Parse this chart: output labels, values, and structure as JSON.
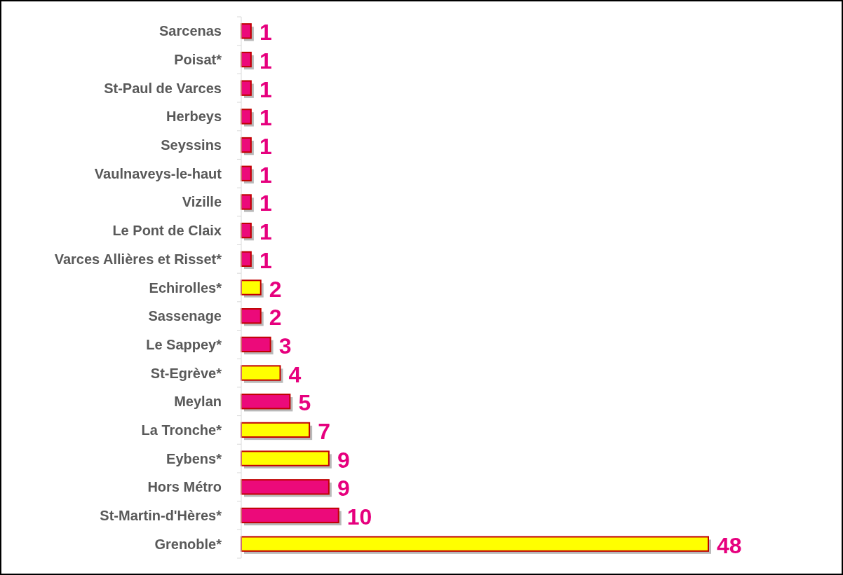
{
  "chart_data": {
    "type": "bar",
    "orientation": "horizontal",
    "categories": [
      "Sarcenas",
      "Poisat*",
      "St-Paul de Varces",
      "Herbeys",
      "Seyssins",
      "Vaulnaveys-le-haut",
      "Vizille",
      "Le Pont de Claix",
      "Varces Allières et Risset*",
      "Echirolles*",
      "Sassenage",
      "Le Sappey*",
      "St-Egrève*",
      "Meylan",
      "La Tronche*",
      "Eybens*",
      "Hors Métro",
      "St-Martin-d'Hères*",
      "Grenoble*"
    ],
    "values": [
      1,
      1,
      1,
      1,
      1,
      1,
      1,
      1,
      1,
      2,
      2,
      3,
      4,
      5,
      7,
      9,
      9,
      10,
      48
    ],
    "colors": [
      "#ec0a7a",
      "#ec0a7a",
      "#ec0a7a",
      "#ec0a7a",
      "#ec0a7a",
      "#ec0a7a",
      "#ec0a7a",
      "#ec0a7a",
      "#ec0a7a",
      "#ffff00",
      "#ec0a7a",
      "#ec0a7a",
      "#ffff00",
      "#ec0a7a",
      "#ffff00",
      "#ffff00",
      "#ec0a7a",
      "#ec0a7a",
      "#ffff00"
    ],
    "data_labels": true
  }
}
